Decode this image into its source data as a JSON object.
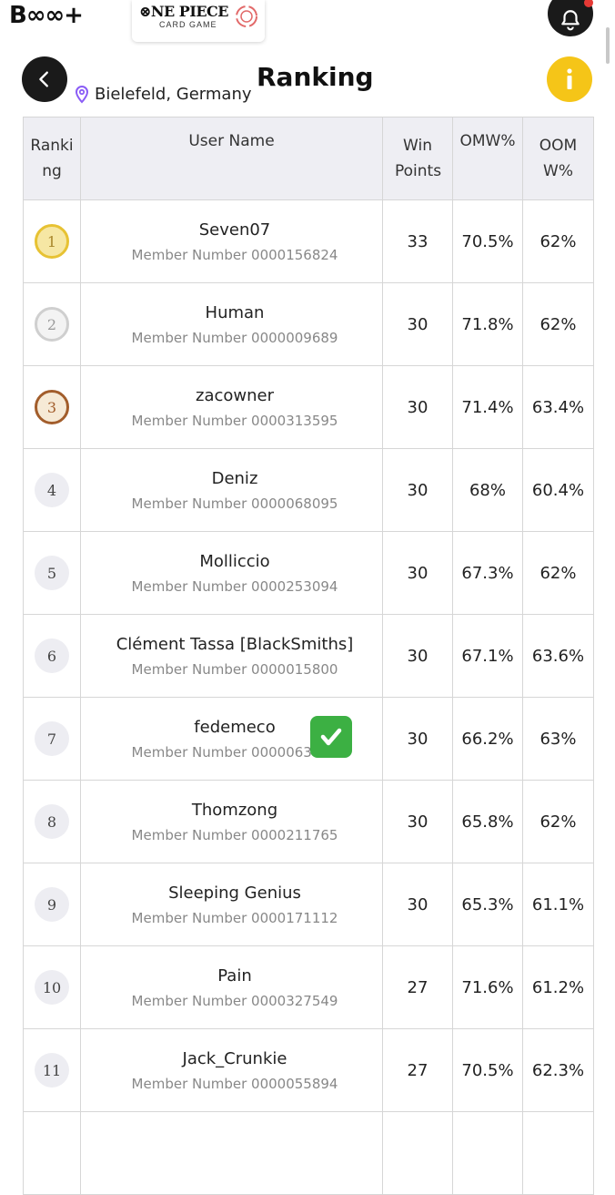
{
  "header": {
    "bandai_logo": "B∞∞+",
    "one_piece_title": "⊗NE PIECE",
    "one_piece_subtitle": "CARD GAME",
    "bell_icon": "bell-icon",
    "location": "Bielefeld, Germany",
    "title": "Ranking",
    "info_label": "i"
  },
  "colors": {
    "accent_yellow": "#f5c518",
    "dark": "#1a1a1a",
    "check_green": "#3cb043"
  },
  "table": {
    "headers": {
      "ranking": "Ranking",
      "user_name": "User Name",
      "win_points": "Win Points",
      "omw": "OMW%",
      "oomw": "OOMW%"
    },
    "member_prefix": "Member Number",
    "rows": [
      {
        "rank": "1",
        "name": "Seven07",
        "member": "Member Number 0000156824",
        "win_points": "33",
        "omw": "70.5%",
        "oomw": "62%"
      },
      {
        "rank": "2",
        "name": "Human",
        "member": "Member Number 0000009689",
        "win_points": "30",
        "omw": "71.8%",
        "oomw": "62%"
      },
      {
        "rank": "3",
        "name": "zacowner",
        "member": "Member Number 0000313595",
        "win_points": "30",
        "omw": "71.4%",
        "oomw": "63.4%"
      },
      {
        "rank": "4",
        "name": "Deniz",
        "member": "Member Number 0000068095",
        "win_points": "30",
        "omw": "68%",
        "oomw": "60.4%"
      },
      {
        "rank": "5",
        "name": "Molliccio",
        "member": "Member Number 0000253094",
        "win_points": "30",
        "omw": "67.3%",
        "oomw": "62%"
      },
      {
        "rank": "6",
        "name": "Clément Tassa [BlackSmiths]",
        "member": "Member Number 0000015800",
        "win_points": "30",
        "omw": "67.1%",
        "oomw": "63.6%"
      },
      {
        "rank": "7",
        "name": "fedemeco",
        "member": "Member Number 0000063945",
        "win_points": "30",
        "omw": "66.2%",
        "oomw": "63%"
      },
      {
        "rank": "8",
        "name": "Thomzong",
        "member": "Member Number 0000211765",
        "win_points": "30",
        "omw": "65.8%",
        "oomw": "62%"
      },
      {
        "rank": "9",
        "name": "Sleeping Genius",
        "member": "Member Number 0000171112",
        "win_points": "30",
        "omw": "65.3%",
        "oomw": "61.1%"
      },
      {
        "rank": "10",
        "name": "Pain",
        "member": "Member Number 0000327549",
        "win_points": "27",
        "omw": "71.6%",
        "oomw": "61.2%"
      },
      {
        "rank": "11",
        "name": "Jack_Crunkie",
        "member": "Member Number 0000055894",
        "win_points": "27",
        "omw": "70.5%",
        "oomw": "62.3%"
      }
    ]
  }
}
